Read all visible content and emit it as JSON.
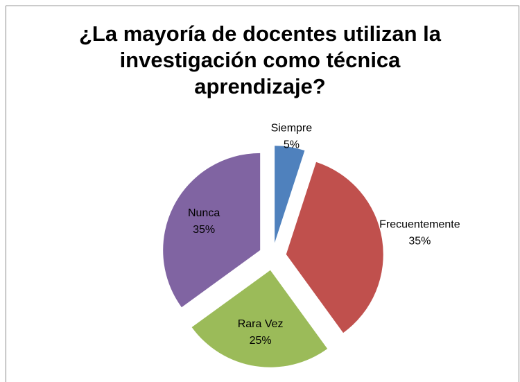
{
  "chart_data": {
    "type": "pie",
    "title": "¿La mayoría de docentes utilizan la investigación como técnica aprendizaje?",
    "categories": [
      "Siempre",
      "Frecuentemente",
      "Rara Vez",
      "Nunca"
    ],
    "values": [
      5,
      35,
      25,
      35
    ],
    "value_labels": [
      "5%",
      "35%",
      "25%",
      "35%"
    ],
    "colors": [
      "#4f81bd",
      "#c0504d",
      "#9bbb59",
      "#8064a2"
    ]
  }
}
